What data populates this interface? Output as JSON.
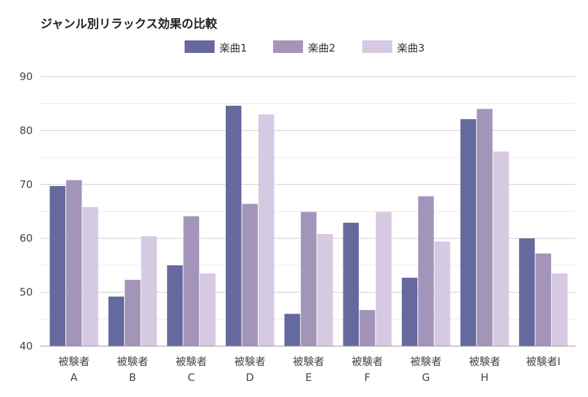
{
  "chart_data": {
    "type": "bar",
    "title": "ジャンル別リラックス効果の比較",
    "categories": [
      [
        "被験者",
        "A"
      ],
      [
        "被験者",
        "B"
      ],
      [
        "被験者",
        "C"
      ],
      [
        "被験者",
        "D"
      ],
      [
        "被験者",
        "E"
      ],
      [
        "被験者",
        "F"
      ],
      [
        "被験者",
        "G"
      ],
      [
        "被験者",
        "H"
      ],
      [
        "被験者I"
      ]
    ],
    "series": [
      {
        "name": "楽曲1",
        "color": "#65699d",
        "values": [
          69.7,
          49.2,
          55.0,
          84.6,
          46.0,
          62.9,
          52.7,
          82.1,
          60.0
        ]
      },
      {
        "name": "楽曲2",
        "color": "#a395ba",
        "values": [
          70.8,
          52.3,
          64.1,
          66.4,
          64.9,
          46.7,
          67.8,
          84.0,
          57.2
        ]
      },
      {
        "name": "楽曲3",
        "color": "#d6c9e2",
        "values": [
          65.8,
          60.4,
          53.5,
          83.0,
          60.8,
          64.9,
          59.4,
          76.1,
          53.5
        ]
      }
    ],
    "ylim": [
      40,
      90
    ],
    "yticks": [
      "40",
      "50",
      "60",
      "70",
      "80",
      "90"
    ],
    "ytick_values": [
      40,
      50,
      60,
      70,
      80,
      90
    ],
    "xlabel": "",
    "ylabel": "",
    "grid": true,
    "legend": "top-center"
  }
}
